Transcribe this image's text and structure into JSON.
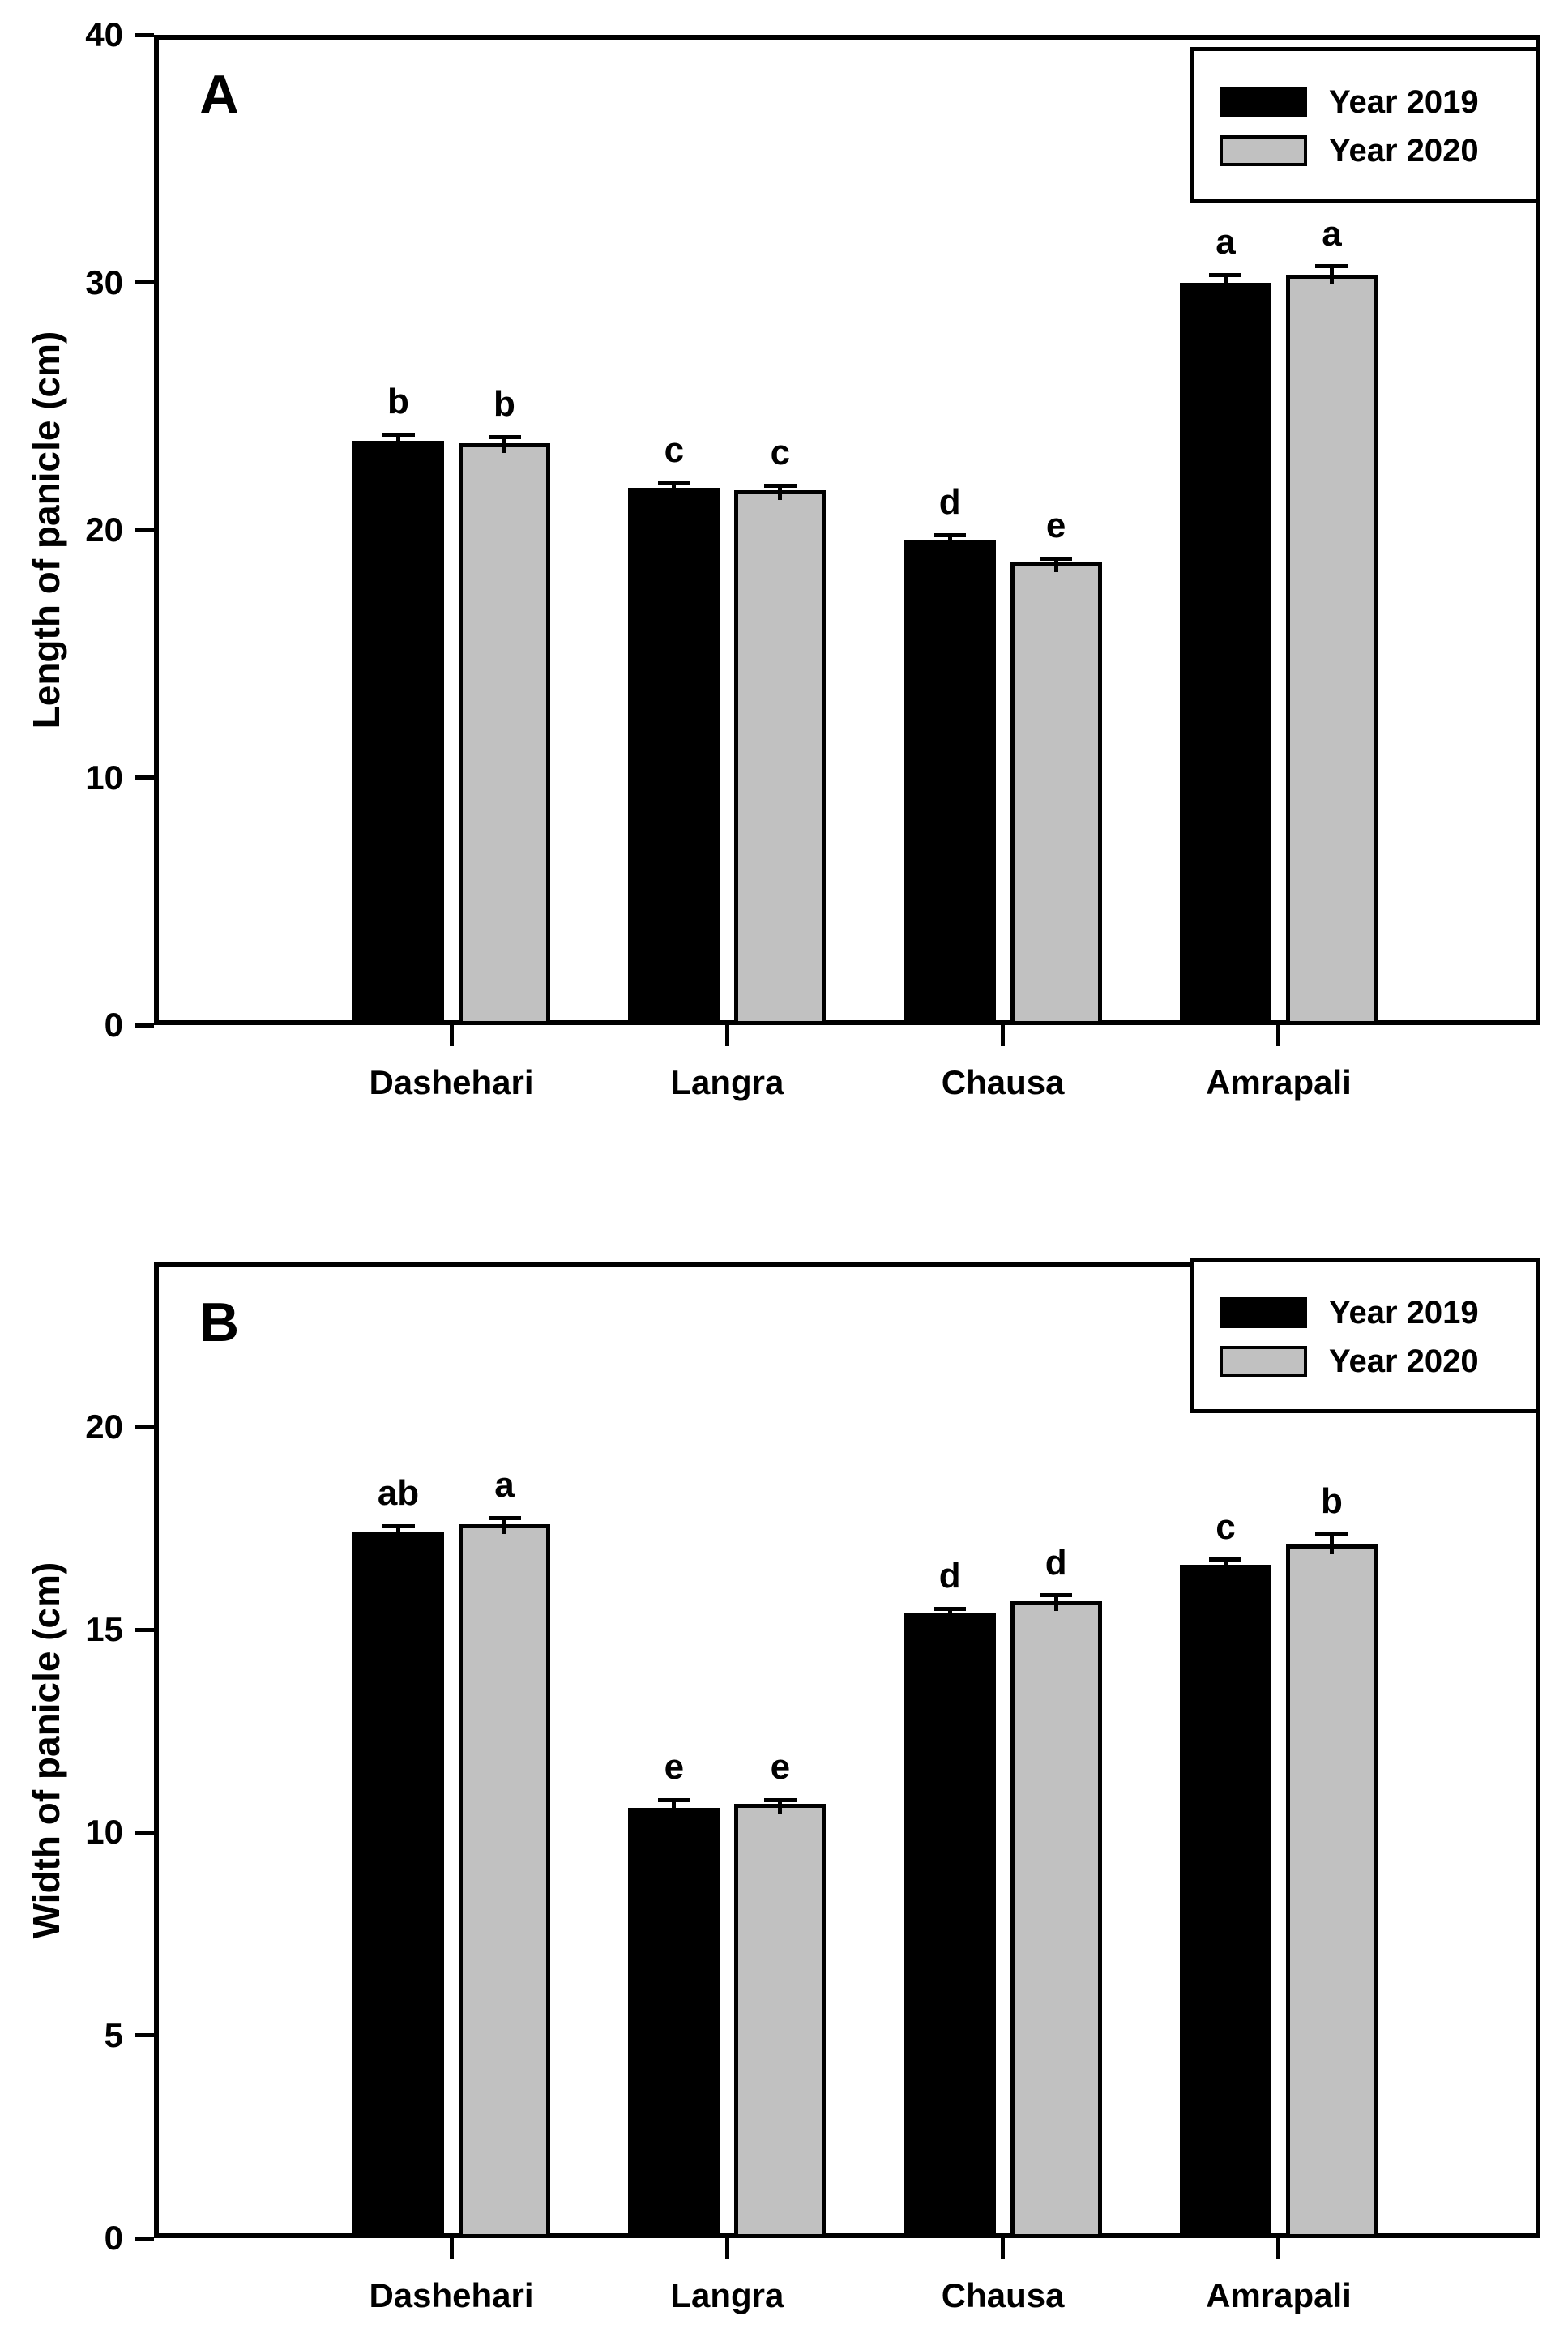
{
  "page": {
    "background": "#ffffff"
  },
  "colors": {
    "bar_2019": "#000000",
    "bar_2020": "#c1c1c1",
    "bar_border": "#000000",
    "text": "#000000"
  },
  "legend": {
    "items": [
      {
        "label": "Year 2019",
        "color_key": "bar_2019"
      },
      {
        "label": "Year 2020",
        "color_key": "bar_2020"
      }
    ]
  },
  "chart_data": [
    {
      "type": "bar",
      "panel_label": "A",
      "ylabel": "Length of panicle (cm)",
      "xlabel": "",
      "categories": [
        "Dashehari",
        "Langra",
        "Chausa",
        "Amrapali"
      ],
      "series": [
        {
          "name": "Year 2019",
          "values": [
            23.6,
            21.7,
            19.6,
            30.0
          ],
          "errors": [
            0.25,
            0.2,
            0.2,
            0.3
          ],
          "letters": [
            "b",
            "c",
            "d",
            "a"
          ]
        },
        {
          "name": "Year 2020",
          "values": [
            23.5,
            21.6,
            18.7,
            30.3
          ],
          "errors": [
            0.25,
            0.2,
            0.15,
            0.35
          ],
          "letters": [
            "b",
            "c",
            "e",
            "a"
          ]
        }
      ],
      "ylim": [
        0,
        40
      ],
      "yticks": [
        0,
        10,
        20,
        30,
        40
      ],
      "grid": false,
      "legend_position": "top-right"
    },
    {
      "type": "bar",
      "panel_label": "B",
      "ylabel": "Width of panicle (cm)",
      "xlabel": "",
      "categories": [
        "Dashehari",
        "Langra",
        "Chausa",
        "Amrapali"
      ],
      "series": [
        {
          "name": "Year 2019",
          "values": [
            17.4,
            10.6,
            15.4,
            16.6
          ],
          "errors": [
            0.15,
            0.2,
            0.12,
            0.12
          ],
          "letters": [
            "ab",
            "e",
            "d",
            "c"
          ]
        },
        {
          "name": "Year 2020",
          "values": [
            17.6,
            10.7,
            15.7,
            17.1
          ],
          "errors": [
            0.15,
            0.1,
            0.15,
            0.25
          ],
          "letters": [
            "a",
            "e",
            "d",
            "b"
          ]
        }
      ],
      "ylim": [
        0,
        24.05
      ],
      "yticks": [
        0,
        5,
        10,
        15,
        20
      ],
      "grid": false,
      "legend_position": "top-right"
    }
  ]
}
